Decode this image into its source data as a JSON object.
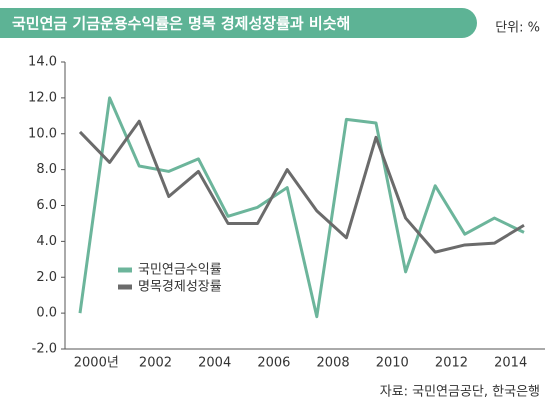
{
  "chart_data": {
    "type": "line",
    "title": "국민연금 기금운용수익률은 명목 경제성장률과 비슷해",
    "unit": "단위: %",
    "source": "자료: 국민연금공단, 한국은행",
    "categories": [
      "2000년",
      null,
      "2002",
      null,
      "2004",
      null,
      "2006",
      null,
      "2008",
      null,
      "2010",
      null,
      "2012",
      null,
      "2014",
      null
    ],
    "series": [
      {
        "name": "국민연금수익률",
        "color": "#6cb59b",
        "values": [
          0,
          12.0,
          8.2,
          7.9,
          8.6,
          5.4,
          5.9,
          7.0,
          -0.2,
          10.8,
          10.6,
          2.3,
          7.1,
          4.4,
          5.3,
          4.5
        ]
      },
      {
        "name": "명목경제성장률",
        "color": "#6b6b6b",
        "values": [
          10.1,
          8.4,
          10.7,
          6.5,
          7.9,
          5.0,
          5.0,
          8.0,
          5.7,
          4.2,
          9.8,
          5.3,
          3.4,
          3.8,
          3.9,
          4.9
        ]
      }
    ],
    "ylim": [
      -2,
      14
    ],
    "yticks": [
      {
        "value": -2,
        "label": "-2.0"
      },
      {
        "value": 0,
        "label": "0.0"
      },
      {
        "value": 2,
        "label": "2.0"
      },
      {
        "value": 4,
        "label": "4.0"
      },
      {
        "value": 6,
        "label": "6.0"
      },
      {
        "value": 8,
        "label": "8.0"
      },
      {
        "value": 10,
        "label": "10.0"
      },
      {
        "value": 12,
        "label": "12.0"
      },
      {
        "value": 14,
        "label": "14.0"
      }
    ],
    "legend": "lower-left"
  }
}
